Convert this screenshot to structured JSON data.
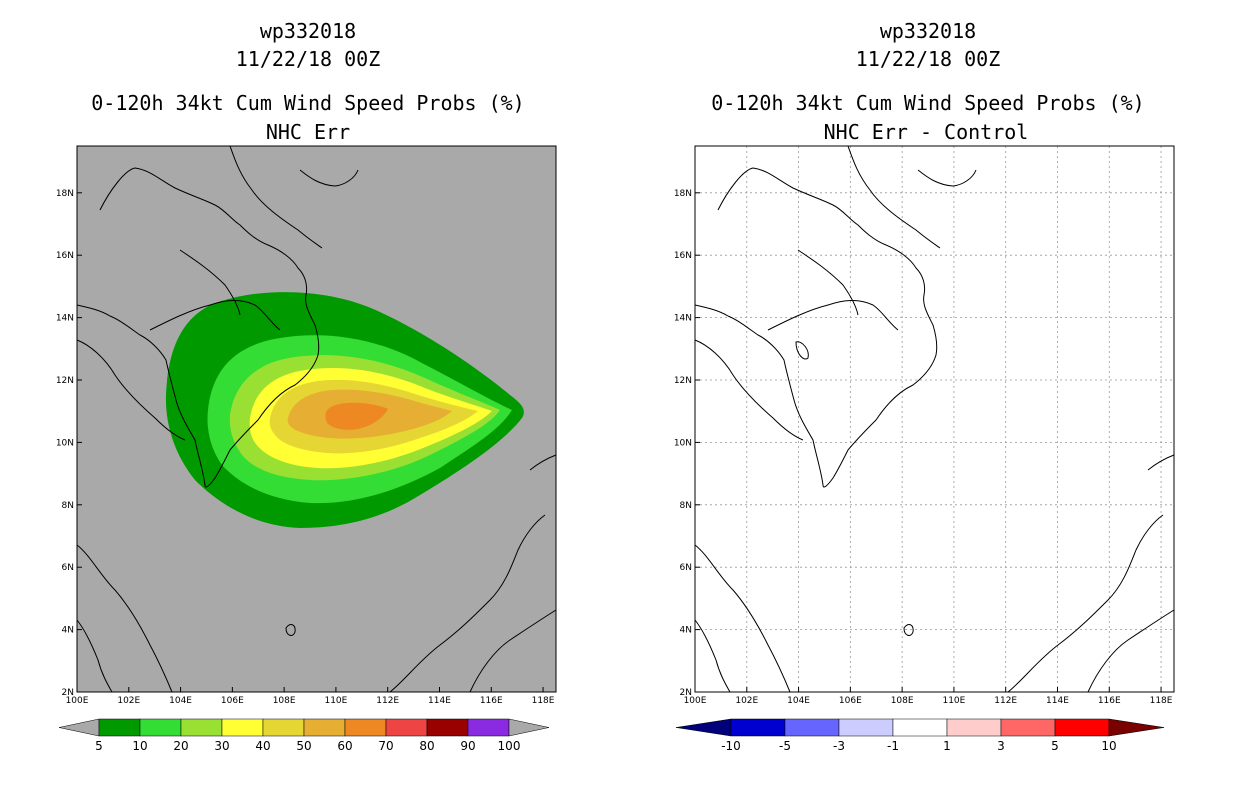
{
  "panels": [
    {
      "id": "left",
      "title_line1": "wp332018",
      "title_line2": "11/22/18 00Z",
      "title_line3": "0-120h 34kt Cum Wind Speed Probs (%)",
      "title_line4": "NHC Err",
      "background": "#a9a9a9",
      "colorbar": {
        "colors": [
          "#009900",
          "#33dd33",
          "#99e033",
          "#ffff33",
          "#e6d633",
          "#e6ae33",
          "#ee8822",
          "#ee4444",
          "#990000",
          "#8a2be2"
        ],
        "labels": [
          "5",
          "10",
          "20",
          "30",
          "40",
          "50",
          "60",
          "70",
          "80",
          "90",
          "100"
        ],
        "end_color": "#a9a9a9"
      }
    },
    {
      "id": "right",
      "title_line1": "wp332018",
      "title_line2": "11/22/18 00Z",
      "title_line3": "0-120h 34kt Cum Wind Speed Probs (%)",
      "title_line4": "NHC Err - Control",
      "background": "#ffffff",
      "colorbar": {
        "colors": [
          "#0000d0",
          "#6666ff",
          "#ccccff",
          "#ffffff",
          "#ffcccc",
          "#ff6666",
          "#ff0000"
        ],
        "labels": [
          "-10",
          "-5",
          "-3",
          "-1",
          "1",
          "3",
          "5",
          "10"
        ],
        "left_end_color": "#00007a",
        "right_end_color": "#7a0000"
      }
    }
  ],
  "axes": {
    "x_ticks": [
      "100E",
      "102E",
      "104E",
      "106E",
      "108E",
      "110E",
      "112E",
      "114E",
      "116E",
      "118E"
    ],
    "y_ticks": [
      "2N",
      "4N",
      "6N",
      "8N",
      "10N",
      "12N",
      "14N",
      "16N",
      "18N"
    ]
  },
  "probability_contours": [
    {
      "level": "5",
      "color": "#009900"
    },
    {
      "level": "10",
      "color": "#33dd33"
    },
    {
      "level": "20",
      "color": "#99e033"
    },
    {
      "level": "30",
      "color": "#ffff33"
    },
    {
      "level": "40",
      "color": "#e6d633"
    },
    {
      "level": "50",
      "color": "#e6ae33"
    },
    {
      "level": "60",
      "color": "#ee8822"
    }
  ]
}
